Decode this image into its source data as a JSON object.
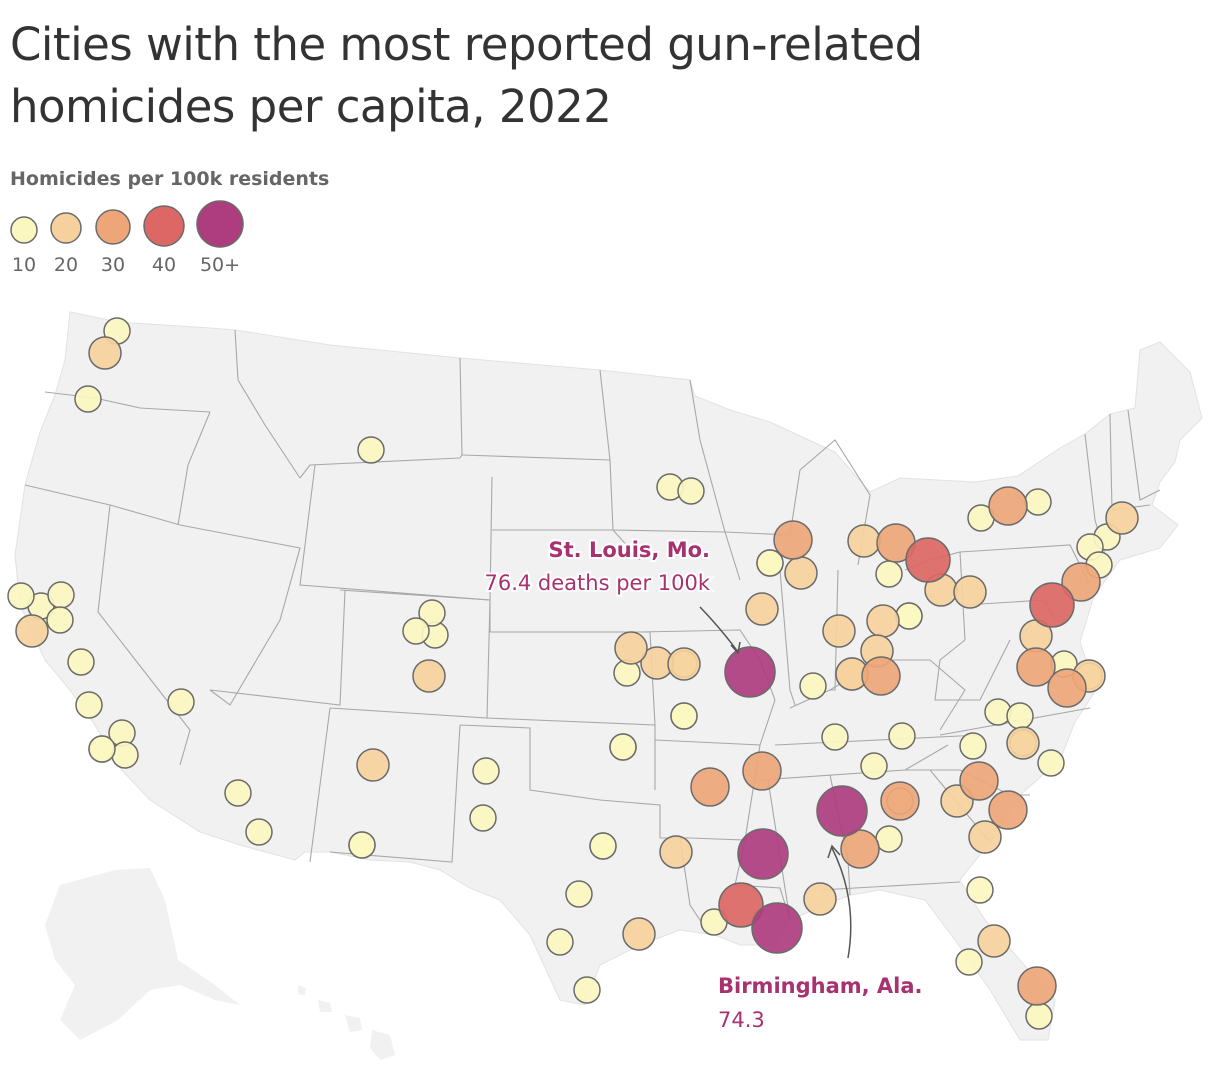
{
  "title": "Cities with the most reported gun-related homicides per capita, 2022",
  "legend": {
    "title": "Homicides per 100k residents",
    "items": [
      {
        "label": "10",
        "color": "#fbf7c0"
      },
      {
        "label": "20",
        "color": "#f6d19d"
      },
      {
        "label": "30",
        "color": "#eea678"
      },
      {
        "label": "40",
        "color": "#dc6764"
      },
      {
        "label": "50+",
        "color": "#ad3d7e"
      }
    ]
  },
  "annotations": [
    {
      "name": "st-louis",
      "city": "St. Louis, Mo.",
      "value": "76.4 deaths per 100k"
    },
    {
      "name": "birmingham",
      "city": "Birmingham, Ala.",
      "value": "74.3"
    }
  ],
  "colors": {
    "land": "#f1f1f1",
    "border": "#a8a8a8",
    "bubble_stroke": "#6b6b6b",
    "annotation": "#a8316f",
    "title": "#333333"
  },
  "cities": [
    {
      "id": "bellingham-wa",
      "level": 1
    },
    {
      "id": "seattle-wa",
      "level": 2
    },
    {
      "id": "portland-or",
      "level": 1
    },
    {
      "id": "billings-mt",
      "level": 1
    },
    {
      "id": "minneapolis-mn",
      "level": 1
    },
    {
      "id": "st-paul-mn",
      "level": 1
    },
    {
      "id": "milwaukee-wi",
      "level": 3
    },
    {
      "id": "chicago-il",
      "level": 2
    },
    {
      "id": "rockford-il",
      "level": 1
    },
    {
      "id": "detroit-mi",
      "level": 3
    },
    {
      "id": "toledo-oh",
      "level": 1
    },
    {
      "id": "cleveland-oh",
      "level": 4
    },
    {
      "id": "akron-oh",
      "level": 2
    },
    {
      "id": "buffalo-ny",
      "level": 3
    },
    {
      "id": "rochester-ny",
      "level": 1
    },
    {
      "id": "syracuse-ny",
      "level": 1
    },
    {
      "id": "hartford-ct",
      "level": 2
    },
    {
      "id": "new-haven-ct",
      "level": 1
    },
    {
      "id": "bridgeport-ct",
      "level": 1
    },
    {
      "id": "newark-nj",
      "level": 1
    },
    {
      "id": "trenton-nj",
      "level": 3
    },
    {
      "id": "philadelphia-pa",
      "level": 4
    },
    {
      "id": "pittsburgh-pa",
      "level": 2
    },
    {
      "id": "harrisburg-pa",
      "level": 2
    },
    {
      "id": "baltimore-md",
      "level": 3
    },
    {
      "id": "washington-dc",
      "level": 2
    },
    {
      "id": "richmond-va",
      "level": 3
    },
    {
      "id": "dover-de",
      "level": 1
    },
    {
      "id": "norfolk-va",
      "level": 2
    },
    {
      "id": "virginia-beach-va",
      "level": 1
    },
    {
      "id": "columbus-oh",
      "level": 2
    },
    {
      "id": "dayton-oh",
      "level": 2
    },
    {
      "id": "cincinnati-oh",
      "level": 2
    },
    {
      "id": "indianapolis-in",
      "level": 2
    },
    {
      "id": "gary-in",
      "level": 3
    },
    {
      "id": "fort-wayne-in",
      "level": 1
    },
    {
      "id": "charleston-wv",
      "level": 1
    },
    {
      "id": "louisville-ky",
      "level": 2
    },
    {
      "id": "lexington-ky",
      "level": 1
    },
    {
      "id": "evansville-in",
      "level": 1
    },
    {
      "id": "peoria-il",
      "level": 1
    },
    {
      "id": "springfield-il",
      "level": 2
    },
    {
      "id": "st-louis-mo",
      "level": 5
    },
    {
      "id": "kansas-city-mo",
      "level": 2
    },
    {
      "id": "kansas-city-ks",
      "level": 2
    },
    {
      "id": "topeka-ks",
      "level": 1
    },
    {
      "id": "springfield-mo",
      "level": 1
    },
    {
      "id": "wichita-ks",
      "level": 1
    },
    {
      "id": "omaha-ne",
      "level": 2
    },
    {
      "id": "des-moines-ia",
      "level": 1
    },
    {
      "id": "denver-co",
      "level": 1
    },
    {
      "id": "aurora-co",
      "level": 1
    },
    {
      "id": "colorado-springs-co",
      "level": 2
    },
    {
      "id": "boulder-co",
      "level": 1
    },
    {
      "id": "albuquerque-nm",
      "level": 2
    },
    {
      "id": "las-cruces-nm",
      "level": 1
    },
    {
      "id": "amarillo-tx",
      "level": 1
    },
    {
      "id": "lubbock-tx",
      "level": 1
    },
    {
      "id": "tulsa-ok",
      "level": 1
    },
    {
      "id": "oklahoma-city-ok",
      "level": 1
    },
    {
      "id": "dallas-tx",
      "level": 1
    },
    {
      "id": "fort-worth-tx",
      "level": 1
    },
    {
      "id": "shreveport-la",
      "level": 2
    },
    {
      "id": "little-rock-ar",
      "level": 3
    },
    {
      "id": "memphis-tn",
      "level": 3
    },
    {
      "id": "jackson-ms",
      "level": 5
    },
    {
      "id": "birmingham-al",
      "level": 5
    },
    {
      "id": "nashville-tn",
      "level": 1
    },
    {
      "id": "knoxville-tn",
      "level": 1
    },
    {
      "id": "chattanooga-tn",
      "level": 1
    },
    {
      "id": "atlanta-ga",
      "level": 3
    },
    {
      "id": "montgomery-al",
      "level": 3
    },
    {
      "id": "columbus-ga",
      "level": 1
    },
    {
      "id": "mobile-al",
      "level": 2
    },
    {
      "id": "baton-rouge-la",
      "level": 4
    },
    {
      "id": "new-orleans-la",
      "level": 5
    },
    {
      "id": "lafayette-la",
      "level": 1
    },
    {
      "id": "houston-tx",
      "level": 2
    },
    {
      "id": "austin-tx",
      "level": 1
    },
    {
      "id": "san-antonio-tx",
      "level": 1
    },
    {
      "id": "corpus-christi-tx",
      "level": 1
    },
    {
      "id": "el-paso-tx",
      "level": 1
    },
    {
      "id": "phoenix-az",
      "level": 1
    },
    {
      "id": "tucson-az",
      "level": 1
    },
    {
      "id": "las-vegas-nv",
      "level": 1
    },
    {
      "id": "reno-nv",
      "level": 1
    },
    {
      "id": "sacramento-ca",
      "level": 1
    },
    {
      "id": "stockton-ca",
      "level": 1
    },
    {
      "id": "oakland-ca",
      "level": 2
    },
    {
      "id": "san-francisco-ca",
      "level": 1
    },
    {
      "id": "san-jose-ca",
      "level": 1
    },
    {
      "id": "fresno-ca",
      "level": 1
    },
    {
      "id": "bakersfield-ca",
      "level": 1
    },
    {
      "id": "los-angeles-ca",
      "level": 1
    },
    {
      "id": "san-bernardino-ca",
      "level": 1
    },
    {
      "id": "long-beach-ca",
      "level": 1
    },
    {
      "id": "charlotte-nc",
      "level": 3
    },
    {
      "id": "greensboro-nc",
      "level": 1
    },
    {
      "id": "durham-nc",
      "level": 1
    },
    {
      "id": "raleigh-nc",
      "level": 1
    },
    {
      "id": "fayetteville-nc",
      "level": 2
    },
    {
      "id": "wilmington-nc",
      "level": 1
    },
    {
      "id": "columbia-sc",
      "level": 2
    },
    {
      "id": "greenville-sc",
      "level": 1
    },
    {
      "id": "charleston-sc",
      "level": 3
    },
    {
      "id": "savannah-ga",
      "level": 2
    },
    {
      "id": "jacksonville-fl",
      "level": 1
    },
    {
      "id": "orlando-fl",
      "level": 2
    },
    {
      "id": "tampa-fl",
      "level": 1
    },
    {
      "id": "miami-fl",
      "level": 3
    },
    {
      "id": "fort-lauderdale-fl",
      "level": 1
    }
  ]
}
